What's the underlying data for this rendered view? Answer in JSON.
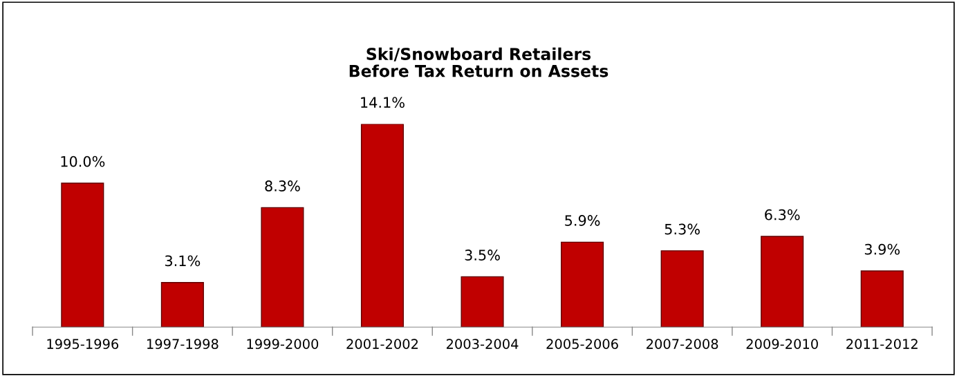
{
  "chart_data": {
    "type": "bar",
    "title": "Ski/Snowboard Retailers\nBefore Tax Return on Assets",
    "categories": [
      "1995-1996",
      "1997-1998",
      "1999-2000",
      "2001-2002",
      "2003-2004",
      "2005-2006",
      "2007-2008",
      "2009-2010",
      "2011-2012"
    ],
    "values": [
      10.0,
      3.1,
      8.3,
      14.1,
      3.5,
      5.9,
      5.3,
      6.3,
      3.9
    ],
    "value_labels": [
      "10.0%",
      "3.1%",
      "8.3%",
      "14.1%",
      "3.5%",
      "5.9%",
      "5.3%",
      "6.3%",
      "3.9%"
    ],
    "color": "#c00000",
    "grid": false,
    "legend": false,
    "tick_labels": "x"
  }
}
